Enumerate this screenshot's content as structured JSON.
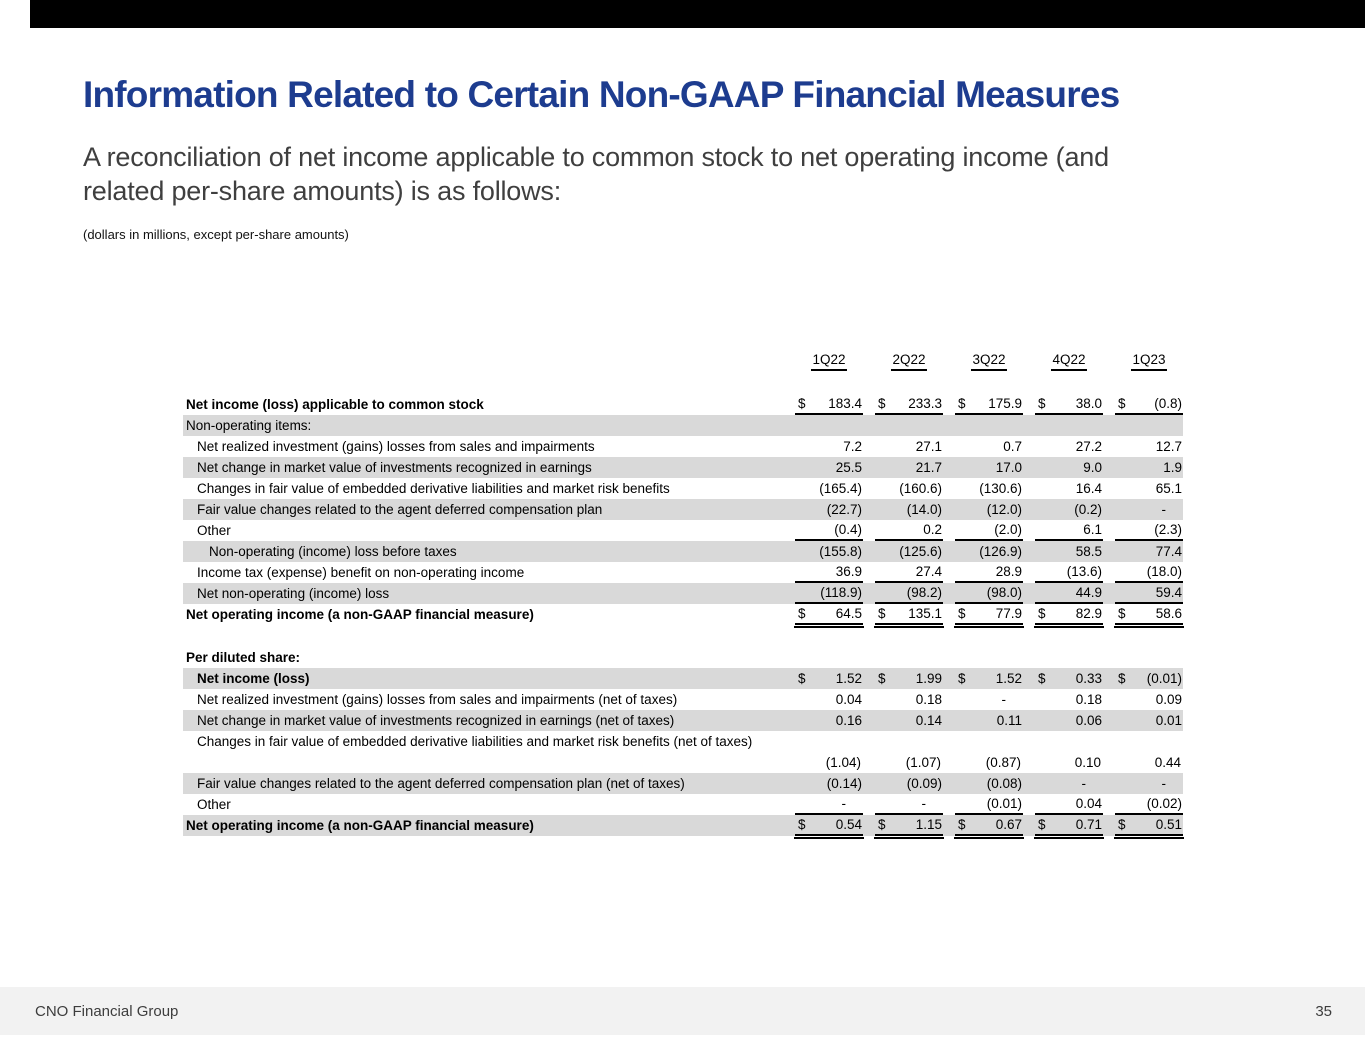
{
  "slide": {
    "title": "Information Related to Certain Non-GAAP Financial Measures",
    "subtitle_line1": "A reconciliation of net income applicable to common stock to net operating income (and",
    "subtitle_line2": "related per-share amounts) is as follows:",
    "units_note": "(dollars in millions, except per-share amounts)"
  },
  "colors": {
    "title_navy": "#1d3c8f",
    "row_shade_gray": "#d9d9d9",
    "footer_gray": "#f2f2f2",
    "top_bar_black": "#000000"
  },
  "footer": {
    "company": "CNO Financial Group",
    "page_number": "35"
  },
  "table": {
    "columns": [
      "1Q22",
      "2Q22",
      "3Q22",
      "4Q22",
      "1Q23"
    ],
    "currency_symbol": "$",
    "rows": [
      {
        "label": "Net income (loss) applicable to common stock",
        "bold": true,
        "indent": 0,
        "shaded": false,
        "dollar": true,
        "underline": "single",
        "values": [
          "183.4",
          "233.3",
          "175.9",
          "38.0",
          "(0.8)"
        ]
      },
      {
        "label": "Non-operating items:",
        "indent": 0,
        "shaded": true
      },
      {
        "label": "Net realized investment (gains) losses from sales and impairments",
        "indent": 1,
        "values": [
          "7.2",
          "27.1",
          "0.7",
          "27.2",
          "12.7"
        ]
      },
      {
        "label": "Net change in market value of investments recognized in earnings",
        "indent": 1,
        "shaded": true,
        "values": [
          "25.5",
          "21.7",
          "17.0",
          "9.0",
          "1.9"
        ]
      },
      {
        "label": "Changes in fair value of embedded derivative liabilities and market risk benefits",
        "indent": 1,
        "values": [
          "(165.4)",
          "(160.6)",
          "(130.6)",
          "16.4",
          "65.1"
        ]
      },
      {
        "label": "Fair value changes related to the agent deferred compensation plan",
        "indent": 1,
        "shaded": true,
        "values": [
          "(22.7)",
          "(14.0)",
          "(12.0)",
          "(0.2)",
          "-"
        ]
      },
      {
        "label": "Other",
        "indent": 1,
        "underline": "single",
        "values": [
          "(0.4)",
          "0.2",
          "(2.0)",
          "6.1",
          "(2.3)"
        ]
      },
      {
        "label": "Non-operating (income) loss before taxes",
        "indent": 2,
        "shaded": true,
        "values": [
          "(155.8)",
          "(125.6)",
          "(126.9)",
          "58.5",
          "77.4"
        ]
      },
      {
        "label": "Income tax (expense) benefit on non-operating income",
        "indent": 1,
        "underline": "single",
        "values": [
          "36.9",
          "27.4",
          "28.9",
          "(13.6)",
          "(18.0)"
        ]
      },
      {
        "label": "Net non-operating (income) loss",
        "indent": 1,
        "shaded": true,
        "underline": "single",
        "values": [
          "(118.9)",
          "(98.2)",
          "(98.0)",
          "44.9",
          "59.4"
        ]
      },
      {
        "label": "Net operating income (a non-GAAP financial measure)",
        "bold": true,
        "indent": 0,
        "dollar": true,
        "underline": "double",
        "values": [
          "64.5",
          "135.1",
          "77.9",
          "82.9",
          "58.6"
        ]
      },
      {
        "spacer": true
      },
      {
        "label": "Per diluted share:",
        "bold": true,
        "indent": 0
      },
      {
        "label": "Net income (loss)",
        "bold": true,
        "indent": 1,
        "shaded": true,
        "dollar": true,
        "values": [
          "1.52",
          "1.99",
          "1.52",
          "0.33",
          "(0.01)"
        ]
      },
      {
        "label": "Net realized investment (gains) losses from sales and impairments (net of taxes)",
        "indent": 1,
        "values": [
          "0.04",
          "0.18",
          "-",
          "0.18",
          "0.09"
        ]
      },
      {
        "label": "Net change in market value of investments recognized in earnings (net of taxes)",
        "indent": 1,
        "shaded": true,
        "values": [
          "0.16",
          "0.14",
          "0.11",
          "0.06",
          "0.01"
        ]
      },
      {
        "label": "Changes in fair value of embedded derivative liabilities and market risk benefits (net of taxes)",
        "indent": 1,
        "two_line": true,
        "values": [
          "(1.04)",
          "(1.07)",
          "(0.87)",
          "0.10",
          "0.44"
        ]
      },
      {
        "label": "Fair value changes related to the agent deferred compensation plan (net of taxes)",
        "indent": 1,
        "shaded": true,
        "values": [
          "(0.14)",
          "(0.09)",
          "(0.08)",
          "-",
          "-"
        ]
      },
      {
        "label": "Other",
        "indent": 1,
        "underline": "single",
        "values": [
          "-",
          "-",
          "(0.01)",
          "0.04",
          "(0.02)"
        ]
      },
      {
        "label": "Net operating income (a non-GAAP financial measure)",
        "bold": true,
        "indent": 0,
        "shaded": true,
        "dollar": true,
        "underline": "double",
        "values": [
          "0.54",
          "1.15",
          "0.67",
          "0.71",
          "0.51"
        ]
      }
    ]
  }
}
